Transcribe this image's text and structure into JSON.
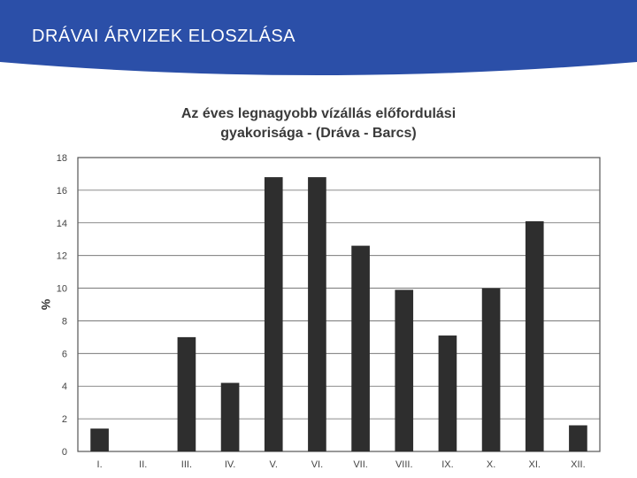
{
  "slide": {
    "title": "DRÁVAI ÁRVIZEK ELOSZLÁSA",
    "header_color": "#2b4fa8"
  },
  "chart_data": {
    "type": "bar",
    "title_lines": [
      "Az éves legnagyobb vízállás előfordulási",
      "gyakorisága - (Dráva - Barcs)"
    ],
    "xlabel": "",
    "ylabel": "%",
    "categories": [
      "I.",
      "II.",
      "III.",
      "IV.",
      "V.",
      "VI.",
      "VII.",
      "VIII.",
      "IX.",
      "X.",
      "XI.",
      "XII."
    ],
    "values": [
      1.4,
      0,
      7.0,
      4.2,
      16.8,
      16.8,
      12.6,
      9.9,
      7.1,
      10.0,
      14.1,
      1.6
    ],
    "ylim": [
      0,
      18
    ],
    "yticks": [
      0,
      2,
      4,
      6,
      8,
      10,
      12,
      14,
      16,
      18
    ],
    "grid": true,
    "bar_color": "#2e2e2e"
  }
}
